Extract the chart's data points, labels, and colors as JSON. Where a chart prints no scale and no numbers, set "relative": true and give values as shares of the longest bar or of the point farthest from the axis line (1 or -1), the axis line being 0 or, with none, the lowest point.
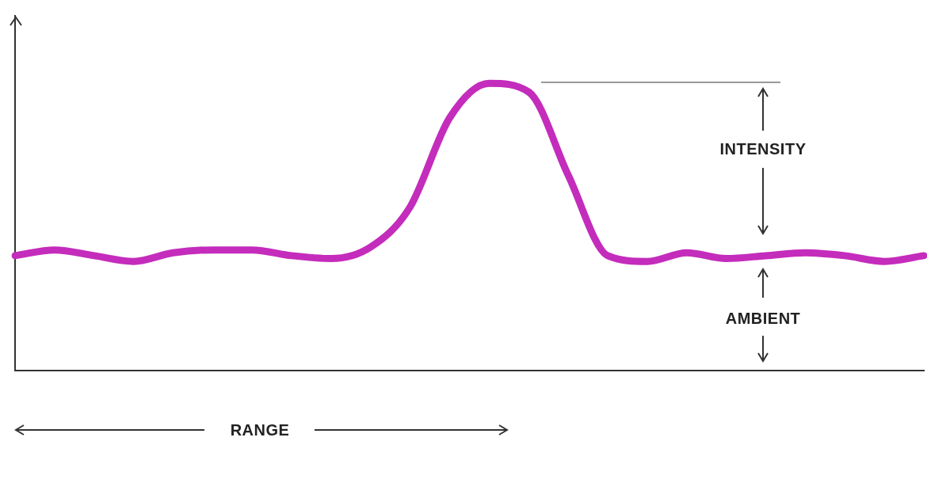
{
  "chart_data": {
    "type": "line",
    "relative": true,
    "legend": false,
    "grid": false,
    "categories": [
      null,
      null,
      null,
      null,
      null,
      null,
      null,
      null,
      null,
      null,
      null,
      null,
      null,
      null,
      null,
      null,
      null,
      null,
      null,
      null,
      null,
      null,
      null,
      null
    ],
    "series": [
      {
        "color": "#c42cbc",
        "values": [
          0.4,
          0.42,
          0.4,
          0.38,
          0.41,
          0.42,
          0.42,
          0.4,
          0.39,
          0.43,
          0.57,
          0.88,
          1.0,
          0.97,
          0.68,
          0.4,
          0.38,
          0.41,
          0.39,
          0.4,
          0.41,
          0.4,
          0.38,
          0.4
        ]
      }
    ],
    "annotations": [
      "INTENSITY",
      "AMBIENT",
      "RANGE"
    ]
  }
}
